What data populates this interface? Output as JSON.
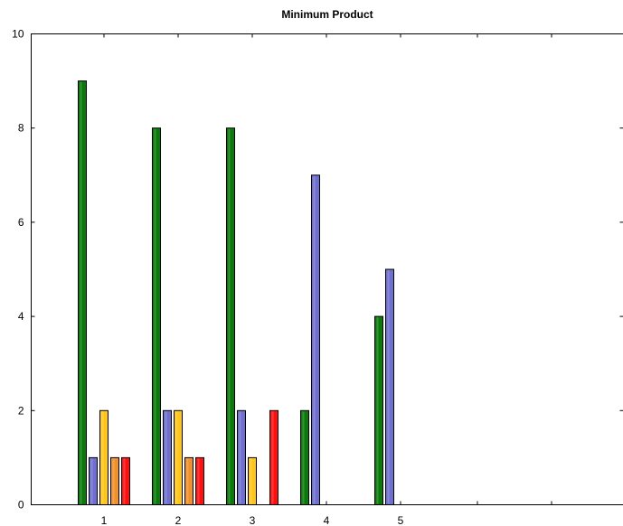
{
  "chart_data": {
    "type": "bar",
    "title": "Minimum Product",
    "xlabel": "",
    "ylabel": "",
    "categories": [
      "1",
      "2",
      "3",
      "4",
      "5"
    ],
    "ylim": [
      0,
      10
    ],
    "yticks": [
      0,
      2,
      4,
      6,
      8,
      10
    ],
    "grid": false,
    "series": [
      {
        "color": "#0a7a0a",
        "values": [
          9,
          8,
          8,
          2,
          4
        ]
      },
      {
        "color": "#6f6fcf",
        "values": [
          1,
          2,
          2,
          7,
          5
        ]
      },
      {
        "color": "#ffc61a",
        "values": [
          2,
          2,
          1,
          0,
          0
        ]
      },
      {
        "color": "#f0902a",
        "values": [
          1,
          1,
          0,
          0,
          0
        ]
      },
      {
        "color": "#ff1010",
        "values": [
          1,
          1,
          2,
          0,
          0
        ]
      }
    ]
  }
}
